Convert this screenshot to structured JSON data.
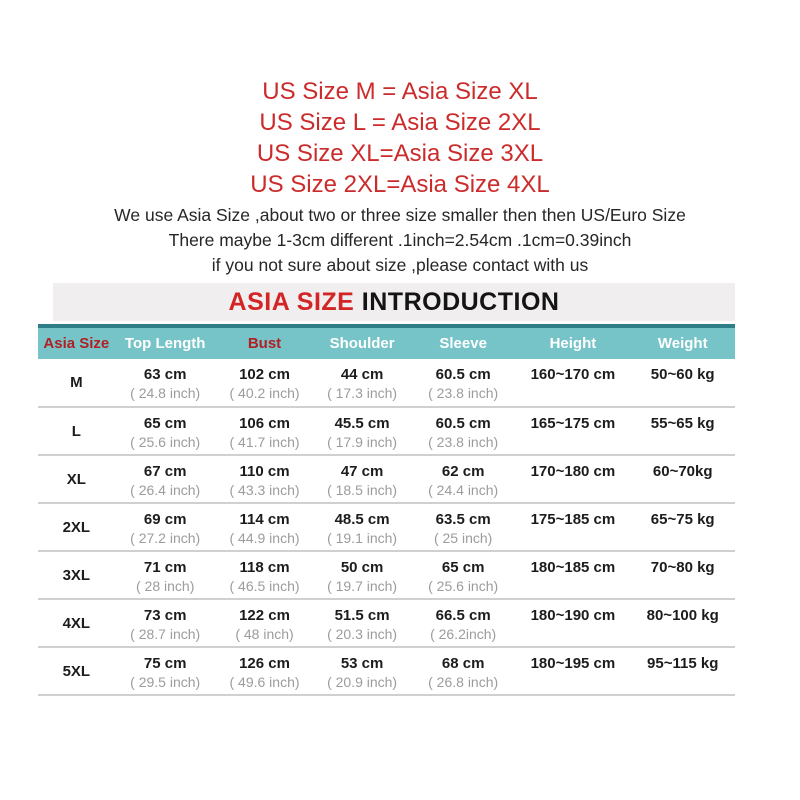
{
  "colors": {
    "red_text": "#cc2b2b",
    "title_red": "#d32526",
    "header_red": "#b02024",
    "teal_header": "#76c3c8",
    "teal_dark_border": "#2e7e87",
    "title_bar_bg": "#f0eeef",
    "inch_gray": "#9c9c9c",
    "divider_gray": "#d0d0d0"
  },
  "size_equivalence": {
    "lines": [
      "US Size M = Asia Size XL",
      "US Size L = Asia Size 2XL",
      "US Size XL=Asia Size 3XL",
      "US Size 2XL=Asia Size 4XL"
    ]
  },
  "notes": {
    "lines": [
      "We use Asia Size ,about two or three size smaller then then US/Euro Size",
      "There maybe 1-3cm different .1inch=2.54cm .1cm=0.39inch",
      "if you not sure about size ,please contact with us"
    ]
  },
  "section_title": {
    "highlight": "ASIA SIZE",
    "rest": " INTRODUCTION"
  },
  "size_table": {
    "headers": [
      {
        "label": "Asia Size",
        "style": "red"
      },
      {
        "label": "Top Length",
        "style": "white"
      },
      {
        "label": "Bust",
        "style": "red"
      },
      {
        "label": "Shoulder",
        "style": "white"
      },
      {
        "label": "Sleeve",
        "style": "white"
      },
      {
        "label": "Height",
        "style": "white"
      },
      {
        "label": "Weight",
        "style": "white"
      }
    ],
    "rows": [
      {
        "size": "M",
        "top_length": {
          "cm": "63 cm",
          "inch": "( 24.8 inch)"
        },
        "bust": {
          "cm": "102 cm",
          "inch": "( 40.2 inch)"
        },
        "shoulder": {
          "cm": "44 cm",
          "inch": "( 17.3 inch)"
        },
        "sleeve": {
          "cm": "60.5 cm",
          "inch": "( 23.8 inch)"
        },
        "height": "160~170 cm",
        "weight": "50~60 kg"
      },
      {
        "size": "L",
        "top_length": {
          "cm": "65 cm",
          "inch": "( 25.6 inch)"
        },
        "bust": {
          "cm": "106 cm",
          "inch": "( 41.7 inch)"
        },
        "shoulder": {
          "cm": "45.5 cm",
          "inch": "( 17.9 inch)"
        },
        "sleeve": {
          "cm": "60.5 cm",
          "inch": "( 23.8 inch)"
        },
        "height": "165~175 cm",
        "weight": "55~65 kg"
      },
      {
        "size": "XL",
        "top_length": {
          "cm": "67 cm",
          "inch": "( 26.4 inch)"
        },
        "bust": {
          "cm": "110 cm",
          "inch": "( 43.3 inch)"
        },
        "shoulder": {
          "cm": "47 cm",
          "inch": "( 18.5 inch)"
        },
        "sleeve": {
          "cm": "62 cm",
          "inch": "( 24.4 inch)"
        },
        "height": "170~180 cm",
        "weight": "60~70kg"
      },
      {
        "size": "2XL",
        "top_length": {
          "cm": "69 cm",
          "inch": "( 27.2 inch)"
        },
        "bust": {
          "cm": "114 cm",
          "inch": "( 44.9 inch)"
        },
        "shoulder": {
          "cm": "48.5 cm",
          "inch": "( 19.1 inch)"
        },
        "sleeve": {
          "cm": "63.5 cm",
          "inch": "( 25 inch)"
        },
        "height": "175~185 cm",
        "weight": "65~75 kg"
      },
      {
        "size": "3XL",
        "top_length": {
          "cm": "71 cm",
          "inch": "( 28 inch)"
        },
        "bust": {
          "cm": "118 cm",
          "inch": "( 46.5 inch)"
        },
        "shoulder": {
          "cm": "50 cm",
          "inch": "( 19.7 inch)"
        },
        "sleeve": {
          "cm": "65 cm",
          "inch": "( 25.6 inch)"
        },
        "height": "180~185 cm",
        "weight": "70~80 kg"
      },
      {
        "size": "4XL",
        "top_length": {
          "cm": "73 cm",
          "inch": "( 28.7 inch)"
        },
        "bust": {
          "cm": "122 cm",
          "inch": "( 48 inch)"
        },
        "shoulder": {
          "cm": "51.5 cm",
          "inch": "( 20.3 inch)"
        },
        "sleeve": {
          "cm": "66.5 cm",
          "inch": "( 26.2inch)"
        },
        "height": "180~190 cm",
        "weight": "80~100 kg"
      },
      {
        "size": "5XL",
        "top_length": {
          "cm": "75 cm",
          "inch": "( 29.5 inch)"
        },
        "bust": {
          "cm": "126 cm",
          "inch": "( 49.6 inch)"
        },
        "shoulder": {
          "cm": "53 cm",
          "inch": "( 20.9 inch)"
        },
        "sleeve": {
          "cm": "68 cm",
          "inch": "( 26.8 inch)"
        },
        "height": "180~195 cm",
        "weight": "95~115 kg"
      }
    ]
  }
}
